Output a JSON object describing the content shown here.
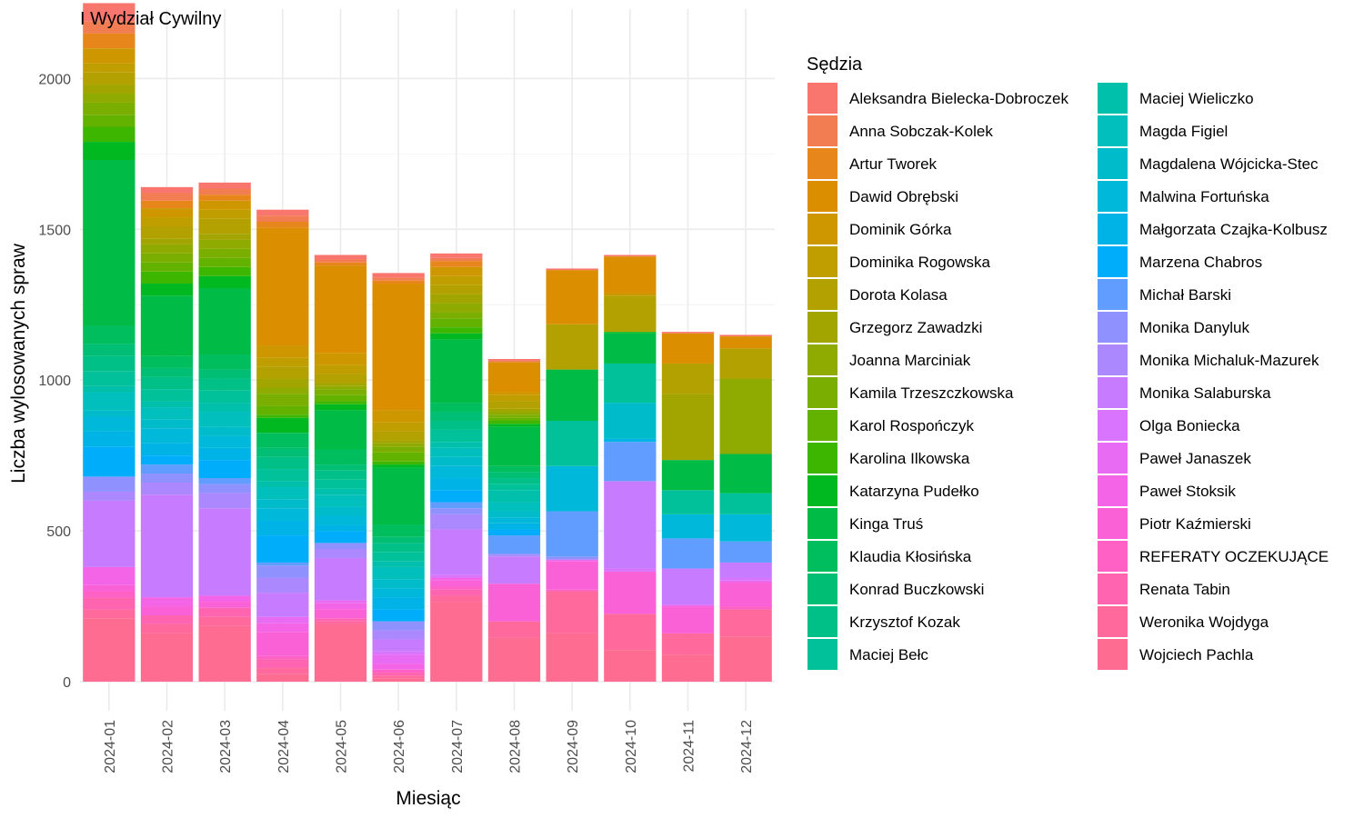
{
  "chart_data": {
    "type": "bar",
    "stacked": true,
    "title": "I Wydział Cywilny",
    "xlabel": "Miesiąc",
    "ylabel": "Liczba wylosowanych spraw",
    "legend_title": "Sędzia",
    "legend_position": "right",
    "grid": true,
    "ylim": [
      0,
      2200
    ],
    "yticks": [
      0,
      500,
      1000,
      1500,
      2000
    ],
    "categories": [
      "2024-01",
      "2024-02",
      "2024-03",
      "2024-04",
      "2024-05",
      "2024-06",
      "2024-07",
      "2024-08",
      "2024-09",
      "2024-10",
      "2024-11",
      "2024-12"
    ],
    "series": [
      {
        "name": "Aleksandra Bielecka-Dobroczek",
        "color": "#F8766D",
        "values": [
          60,
          20,
          20,
          20,
          15,
          15,
          15,
          5,
          5,
          5,
          5,
          5
        ]
      },
      {
        "name": "Anna Sobczak-Kolek",
        "color": "#F27D52",
        "values": [
          40,
          25,
          20,
          20,
          10,
          10,
          10,
          5,
          0,
          0,
          0,
          0
        ]
      },
      {
        "name": "Artur Tworek",
        "color": "#E7861B",
        "values": [
          50,
          25,
          20,
          20,
          10,
          10,
          20,
          0,
          0,
          0,
          0,
          0
        ]
      },
      {
        "name": "Dawid Obrębski",
        "color": "#DB8E00",
        "values": [
          0,
          0,
          0,
          390,
          290,
          420,
          0,
          100,
          180,
          120,
          100,
          40
        ]
      },
      {
        "name": "Dominik Górka",
        "color": "#CE9700",
        "values": [
          50,
          30,
          30,
          40,
          40,
          40,
          30,
          10,
          0,
          10,
          0,
          0
        ]
      },
      {
        "name": "Dominika Rogowska",
        "color": "#C09E00",
        "values": [
          30,
          30,
          30,
          30,
          30,
          30,
          30,
          20,
          0,
          0,
          0,
          0
        ]
      },
      {
        "name": "Dorota Kolasa",
        "color": "#B2A100",
        "values": [
          40,
          40,
          50,
          40,
          30,
          30,
          30,
          25,
          150,
          120,
          100,
          100
        ]
      },
      {
        "name": "Grzegorz Zawadzki",
        "color": "#A2A500",
        "values": [
          30,
          20,
          20,
          30,
          10,
          10,
          30,
          10,
          0,
          0,
          220,
          0
        ]
      },
      {
        "name": "Joanna Marciniak",
        "color": "#8FAA00",
        "values": [
          30,
          30,
          30,
          20,
          10,
          10,
          30,
          10,
          0,
          0,
          0,
          250
        ]
      },
      {
        "name": "Kamila Trzeszczkowska",
        "color": "#7AAE00",
        "values": [
          40,
          30,
          30,
          40,
          20,
          20,
          20,
          10,
          0,
          0,
          0,
          0
        ]
      },
      {
        "name": "Karol Rospończyk",
        "color": "#64B200",
        "values": [
          40,
          30,
          30,
          30,
          20,
          30,
          30,
          10,
          0,
          0,
          0,
          0
        ]
      },
      {
        "name": "Karolina Ilkowska",
        "color": "#3DB600",
        "values": [
          50,
          40,
          30,
          10,
          10,
          10,
          20,
          10,
          0,
          0,
          0,
          0
        ]
      },
      {
        "name": "Katarzyna Pudełko",
        "color": "#00B81F",
        "values": [
          60,
          40,
          40,
          50,
          20,
          10,
          20,
          10,
          0,
          5,
          0,
          0
        ]
      },
      {
        "name": "Kinga Truś",
        "color": "#00BB45",
        "values": [
          550,
          200,
          220,
          0,
          130,
          190,
          210,
          130,
          170,
          100,
          100,
          130
        ]
      },
      {
        "name": "Klaudia Kłosińska",
        "color": "#00BD5E",
        "values": [
          60,
          40,
          50,
          50,
          50,
          40,
          30,
          20,
          0,
          0,
          0,
          0
        ]
      },
      {
        "name": "Konrad Buczkowski",
        "color": "#00BF74",
        "values": [
          40,
          30,
          30,
          30,
          20,
          20,
          30,
          20,
          0,
          0,
          0,
          0
        ]
      },
      {
        "name": "Krzysztof Kozak",
        "color": "#00C087",
        "values": [
          50,
          40,
          40,
          40,
          30,
          30,
          30,
          20,
          0,
          0,
          0,
          0
        ]
      },
      {
        "name": "Maciej Bełc",
        "color": "#00C19A",
        "values": [
          50,
          40,
          40,
          40,
          30,
          30,
          40,
          20,
          150,
          130,
          80,
          70
        ]
      },
      {
        "name": "Maciej Wieliczko",
        "color": "#00C0AB",
        "values": [
          20,
          20,
          30,
          20,
          20,
          20,
          20,
          40,
          0,
          0,
          0,
          0
        ]
      },
      {
        "name": "Magda Figiel",
        "color": "#00BFBC",
        "values": [
          60,
          40,
          50,
          40,
          40,
          40,
          30,
          30,
          0,
          0,
          0,
          0
        ]
      },
      {
        "name": "Magdalena Wójcicka-Stec",
        "color": "#00BCCB",
        "values": [
          20,
          30,
          30,
          30,
          30,
          30,
          30,
          20,
          0,
          120,
          0,
          0
        ]
      },
      {
        "name": "Malwina Fortuńska",
        "color": "#00B8D9",
        "values": [
          50,
          50,
          40,
          40,
          30,
          30,
          40,
          20,
          150,
          0,
          80,
          90
        ]
      },
      {
        "name": "Małgorzata Czajka-Kolbusz",
        "color": "#00B3E6",
        "values": [
          50,
          40,
          40,
          50,
          20,
          40,
          40,
          20,
          0,
          10,
          0,
          0
        ]
      },
      {
        "name": "Marzena Chabros",
        "color": "#00ADFA",
        "values": [
          100,
          30,
          60,
          90,
          40,
          40,
          40,
          20,
          0,
          0,
          0,
          0
        ]
      },
      {
        "name": "Michał Barski",
        "color": "#619CFF",
        "values": [
          0,
          30,
          20,
          10,
          0,
          0,
          20,
          60,
          150,
          130,
          100,
          70
        ]
      },
      {
        "name": "Monika Danyluk",
        "color": "#8F91FF",
        "values": [
          50,
          30,
          30,
          40,
          20,
          30,
          20,
          5,
          10,
          0,
          0,
          0
        ]
      },
      {
        "name": "Monika Michaluk-Mazurek",
        "color": "#AC88FF",
        "values": [
          30,
          40,
          50,
          50,
          30,
          30,
          50,
          5,
          0,
          0,
          0,
          0
        ]
      },
      {
        "name": "Monika Salaburska",
        "color": "#C77CFF",
        "values": [
          220,
          340,
          290,
          80,
          140,
          40,
          150,
          90,
          0,
          290,
          120,
          50
        ]
      },
      {
        "name": "Olga Boniecka",
        "color": "#D874FD",
        "values": [
          0,
          0,
          0,
          0,
          0,
          10,
          10,
          0,
          0,
          10,
          0,
          10
        ]
      },
      {
        "name": "Paweł Janaszek",
        "color": "#E76BF3",
        "values": [
          0,
          0,
          0,
          20,
          10,
          30,
          0,
          0,
          5,
          0,
          5,
          5
        ]
      },
      {
        "name": "Paweł Stoksik",
        "color": "#F364E6",
        "values": [
          60,
          30,
          20,
          30,
          20,
          20,
          10,
          0,
          0,
          0,
          0,
          0
        ]
      },
      {
        "name": "Piotr Kaźmierski",
        "color": "#FB61D7",
        "values": [
          20,
          30,
          20,
          80,
          30,
          0,
          20,
          125,
          95,
          140,
          90,
          80
        ]
      },
      {
        "name": "REFERATY OCZEKUJĄCE",
        "color": "#FF61C5",
        "values": [
          20,
          0,
          0,
          10,
          0,
          10,
          10,
          0,
          5,
          0,
          0,
          10
        ]
      },
      {
        "name": "Renata Tabin",
        "color": "#FF64B1",
        "values": [
          40,
          30,
          30,
          30,
          10,
          10,
          20,
          0,
          0,
          0,
          0,
          0
        ]
      },
      {
        "name": "Weronika Wojdyga",
        "color": "#FF699C",
        "values": [
          30,
          30,
          30,
          20,
          10,
          10,
          20,
          55,
          140,
          120,
          70,
          90
        ]
      },
      {
        "name": "Wojciech Pachla",
        "color": "#FF6C91",
        "values": [
          210,
          160,
          185,
          25,
          190,
          10,
          265,
          145,
          160,
          105,
          90,
          150
        ]
      }
    ]
  }
}
